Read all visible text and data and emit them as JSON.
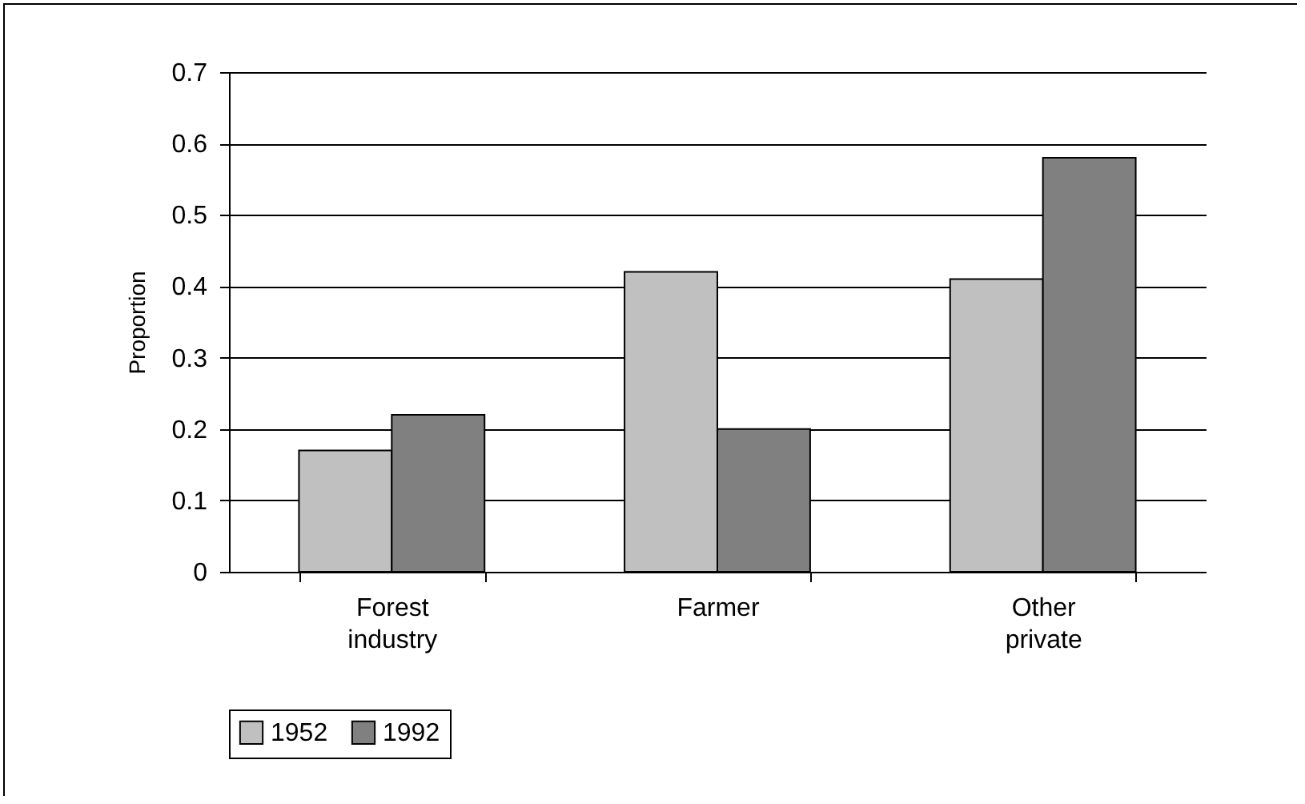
{
  "chart_data": {
    "type": "bar",
    "ylabel": "Proportion",
    "categories": [
      "Forest industry",
      "Farmer",
      "Other private"
    ],
    "series": [
      {
        "name": "1952",
        "color": "#c0c0c0",
        "values": [
          0.17,
          0.42,
          0.41
        ]
      },
      {
        "name": "1992",
        "color": "#808080",
        "values": [
          0.22,
          0.2,
          0.58
        ]
      }
    ],
    "ylim": [
      0,
      0.7
    ],
    "yticks": [
      0,
      0.1,
      0.2,
      0.3,
      0.4,
      0.5,
      0.6,
      0.7
    ],
    "grid": "y",
    "legend": "bottom"
  }
}
